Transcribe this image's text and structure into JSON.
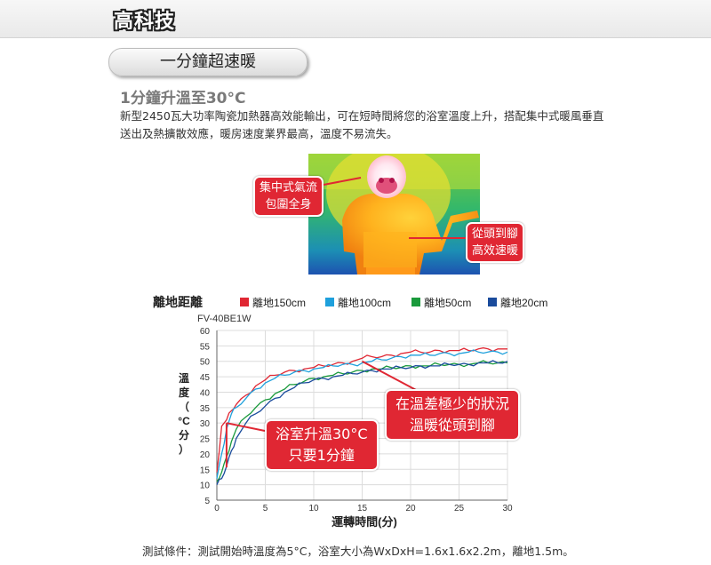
{
  "header": {
    "brand": "高科技"
  },
  "section": {
    "title": "一分鐘超速暖"
  },
  "feature": {
    "title": "1分鐘升溫至30°C",
    "description": "新型2450瓦大功率陶瓷加熱器高效能輸出，可在短時間將您的浴室溫度上升，搭配集中式暖風垂直送出及熱擴散效應，暖房速度業界最高，溫度不易流失。"
  },
  "thermal_image": {
    "callout_left": [
      "集中式氣流",
      "包圍全身"
    ],
    "callout_right": [
      "從頭到腳",
      "高效速暖"
    ]
  },
  "chart_data": {
    "type": "line",
    "legend_title": "離地距離",
    "legend_placement": "top",
    "model": "FV-40BE1W",
    "xlabel": "運轉時間(分)",
    "ylabel": "溫度(°C分)",
    "ylabel_chars": [
      "溫",
      "度",
      "（",
      "°C",
      "分",
      "）"
    ],
    "xlim": [
      0,
      30
    ],
    "ylim": [
      5,
      60
    ],
    "x_ticks": [
      0,
      5,
      10,
      15,
      20,
      25,
      30
    ],
    "y_ticks": [
      5,
      10,
      15,
      20,
      25,
      30,
      35,
      40,
      45,
      50,
      55,
      60
    ],
    "grid": true,
    "series": [
      {
        "name": "離地150cm",
        "color": "#e02733",
        "x": [
          0,
          0.5,
          1,
          1.5,
          2,
          3,
          4,
          5,
          6,
          7,
          8,
          9,
          10,
          11,
          12,
          13,
          14,
          15,
          16,
          17,
          18,
          19,
          20,
          21,
          22,
          23,
          24,
          25,
          26,
          27,
          28,
          29,
          30
        ],
        "y": [
          14,
          29,
          31,
          34,
          36,
          39,
          42,
          44,
          45.5,
          46.5,
          47,
          47.5,
          48,
          48.5,
          49,
          49.5,
          50,
          51,
          51.5,
          51.5,
          52,
          52.5,
          53,
          53,
          53,
          53.5,
          53.5,
          53.5,
          53.5,
          54,
          54,
          54,
          54
        ]
      },
      {
        "name": "離地100cm",
        "color": "#1ea0dc",
        "x": [
          0,
          0.5,
          1,
          1.5,
          2,
          3,
          4,
          5,
          6,
          7,
          8,
          9,
          10,
          11,
          12,
          13,
          14,
          15,
          16,
          17,
          18,
          19,
          20,
          21,
          22,
          23,
          24,
          25,
          26,
          27,
          28,
          29,
          30
        ],
        "y": [
          12,
          20,
          28,
          33,
          35,
          38,
          41,
          43,
          44.5,
          45.5,
          46.5,
          47,
          47.5,
          48,
          48.5,
          49,
          49,
          49.5,
          50,
          50.5,
          51,
          51.5,
          52,
          52,
          52,
          52.5,
          52.5,
          52.5,
          53,
          53,
          53,
          53,
          53
        ]
      },
      {
        "name": "離地50cm",
        "color": "#1a9a3c",
        "x": [
          0,
          0.5,
          1,
          1.5,
          2,
          3,
          4,
          5,
          6,
          7,
          8,
          9,
          10,
          11,
          12,
          13,
          14,
          15,
          16,
          17,
          18,
          19,
          20,
          21,
          22,
          23,
          24,
          25,
          26,
          27,
          28,
          29,
          30
        ],
        "y": [
          11,
          14,
          19,
          24,
          28,
          32,
          35,
          37.5,
          39.5,
          41,
          42.5,
          43.5,
          44.5,
          45,
          45.5,
          46,
          46.5,
          47,
          47.5,
          47.5,
          48,
          48,
          48.5,
          48.5,
          48.5,
          49,
          49,
          49,
          49,
          49.5,
          49.5,
          49.5,
          49.5
        ]
      },
      {
        "name": "離地20cm",
        "color": "#1a4b9c",
        "x": [
          0,
          0.5,
          1,
          1.5,
          2,
          3,
          4,
          5,
          6,
          7,
          8,
          9,
          10,
          11,
          12,
          13,
          14,
          15,
          16,
          17,
          18,
          19,
          20,
          21,
          22,
          23,
          24,
          25,
          26,
          27,
          28,
          29,
          30
        ],
        "y": [
          10,
          12,
          16,
          21,
          25,
          30,
          33,
          35.5,
          38,
          40,
          41.5,
          43,
          44,
          44.5,
          45,
          45.5,
          46,
          46.5,
          47,
          47.5,
          47.5,
          48,
          48,
          48.5,
          48.5,
          48.5,
          49,
          49,
          49,
          49.5,
          49.5,
          49.5,
          50
        ]
      }
    ],
    "annotations": [
      {
        "lines": [
          "浴室升溫30°C",
          "只要1分鐘"
        ],
        "x": 1,
        "y": 30
      },
      {
        "lines": [
          "在溫差極少的狀況",
          "溫暖從頭到腳"
        ],
        "x": 15,
        "y": 50
      }
    ]
  },
  "footnote": "測試條件：測試開始時溫度為5°C，浴室大小為WxDxH=1.6x1.6x2.2m，離地1.5m。"
}
